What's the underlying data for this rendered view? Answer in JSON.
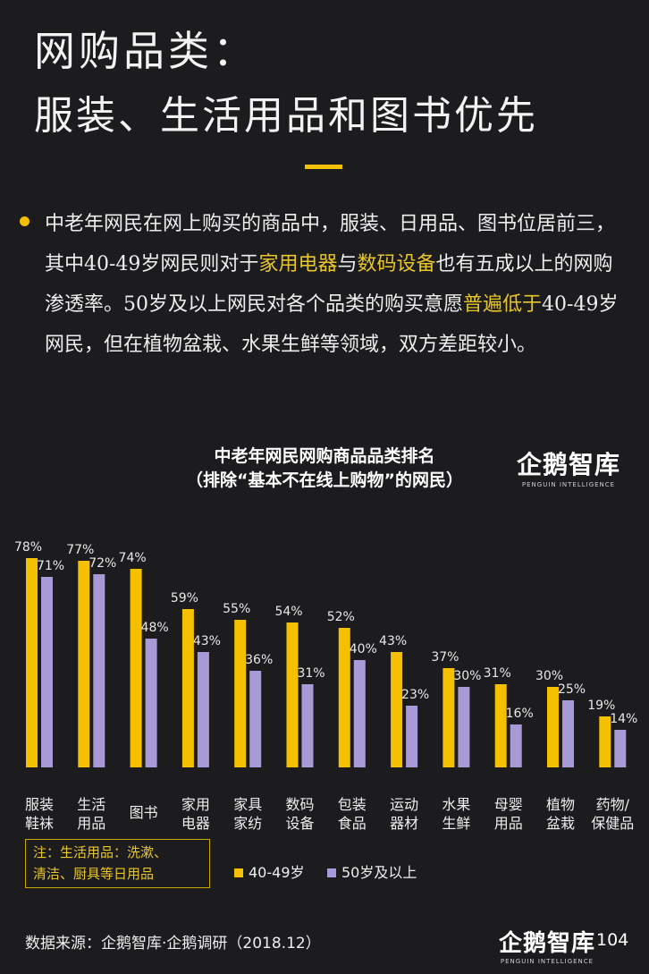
{
  "header": {
    "title_line1": "网购品类：",
    "title_line2": "服装、生活用品和图书优先"
  },
  "paragraph": {
    "p1": "中老年网民在网上购买的商品中，服装、日用品、图书位居前三，其中40-49岁网民则对于",
    "h1": "家用电器",
    "p2": "与",
    "h2": "数码设备",
    "p3": "也有五成以上的网购渗透率。50岁及以上网民对各个品类的购买意愿",
    "h3": "普遍低于",
    "p4": "40-49岁网民，但在植物盆栽、水果生鲜等领域，双方差距较小。"
  },
  "logo": {
    "main": "企鹅智库",
    "sub": "PENGUIN INTELLIGENCE"
  },
  "colors": {
    "accent": "#f5c000",
    "series2": "#a89ad6",
    "background": "#1c1b1e"
  },
  "chart_data": {
    "type": "bar",
    "title": "中老年网民网购商品品类排名",
    "subtitle": "（排除“基本不在线上购物”的网民）",
    "categories": [
      [
        "服装",
        "鞋袜"
      ],
      [
        "生活",
        "用品"
      ],
      [
        "图书"
      ],
      [
        "家用",
        "电器"
      ],
      [
        "家具",
        "家纺"
      ],
      [
        "数码",
        "设备"
      ],
      [
        "包装",
        "食品"
      ],
      [
        "运动",
        "器材"
      ],
      [
        "水果",
        "生鲜"
      ],
      [
        "母婴",
        "用品"
      ],
      [
        "植物",
        "盆栽"
      ],
      [
        "药物/",
        "保健品"
      ]
    ],
    "series": [
      {
        "name": "40-49岁",
        "color": "#f5c000",
        "values": [
          78,
          77,
          74,
          59,
          55,
          54,
          52,
          43,
          37,
          31,
          30,
          19
        ]
      },
      {
        "name": "50岁及以上",
        "color": "#a89ad6",
        "values": [
          71,
          72,
          48,
          43,
          36,
          31,
          40,
          23,
          30,
          16,
          25,
          14
        ]
      }
    ],
    "value_suffix": "%",
    "ylim": [
      0,
      100
    ],
    "legend_position": "bottom",
    "grid": false
  },
  "note": {
    "line1": "注：生活用品：洗漱、",
    "line2": "清洁、厨具等日用品"
  },
  "footer": {
    "source": "数据来源：企鹅智库·企鹅调研（2018.12）",
    "page": "104"
  }
}
